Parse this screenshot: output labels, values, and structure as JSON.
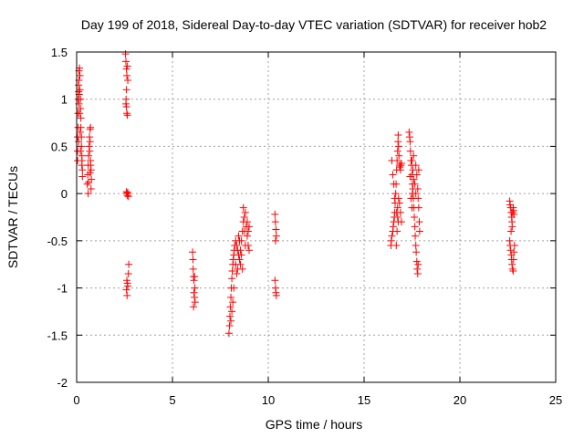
{
  "chart_data": {
    "type": "scatter",
    "title": "Day 199 of 2018, Sidereal Day-to-day VTEC variation (SDTVAR) for receiver hob2",
    "xlabel": "GPS time / hours",
    "ylabel": "SDTVAR / TECUs",
    "xlim": [
      0,
      25
    ],
    "ylim": [
      -2,
      1.5
    ],
    "xticks": [
      0,
      5,
      10,
      15,
      20,
      25
    ],
    "xtick_labels": [
      "0",
      "5",
      "10",
      "15",
      "20",
      "25"
    ],
    "yticks": [
      -2,
      -1.5,
      -1,
      -0.5,
      0,
      0.5,
      1,
      1.5
    ],
    "ytick_labels": [
      "-2",
      "-1.5",
      "-1",
      "-0.5",
      "0",
      "0.5",
      "1",
      "1.5"
    ],
    "grid": true,
    "marker": "plus",
    "color": "#ff0000",
    "series": [
      {
        "name": "SDTVAR",
        "points": [
          [
            0.05,
            0.35
          ],
          [
            0.05,
            0.45
          ],
          [
            0.05,
            0.6
          ],
          [
            0.07,
            0.7
          ],
          [
            0.07,
            0.85
          ],
          [
            0.08,
            1.0
          ],
          [
            0.1,
            1.08
          ],
          [
            0.1,
            1.15
          ],
          [
            0.12,
            1.2
          ],
          [
            0.12,
            1.3
          ],
          [
            0.15,
            1.33
          ],
          [
            0.17,
            1.25
          ],
          [
            0.17,
            1.1
          ],
          [
            0.2,
            1.0
          ],
          [
            0.2,
            0.9
          ],
          [
            0.22,
            0.8
          ],
          [
            0.22,
            0.7
          ],
          [
            0.25,
            0.6
          ],
          [
            0.25,
            0.5
          ],
          [
            0.27,
            0.4
          ],
          [
            0.27,
            0.3
          ],
          [
            0.3,
            0.25
          ],
          [
            0.3,
            0.18
          ],
          [
            0.12,
            0.95
          ],
          [
            0.15,
            0.85
          ],
          [
            0.1,
            0.55
          ],
          [
            0.18,
            0.65
          ],
          [
            0.2,
            0.45
          ],
          [
            0.28,
            0.35
          ],
          [
            0.13,
            1.05
          ],
          [
            0.55,
            0.1
          ],
          [
            0.58,
            0.2
          ],
          [
            0.6,
            0.3
          ],
          [
            0.62,
            0.4
          ],
          [
            0.65,
            0.5
          ],
          [
            0.67,
            0.6
          ],
          [
            0.7,
            0.68
          ],
          [
            0.72,
            0.7
          ],
          [
            0.7,
            0.55
          ],
          [
            0.68,
            0.45
          ],
          [
            0.72,
            0.35
          ],
          [
            0.75,
            0.25
          ],
          [
            0.77,
            0.15
          ],
          [
            0.75,
            0.05
          ],
          [
            0.6,
            0.0
          ],
          [
            0.62,
            0.12
          ],
          [
            0.7,
            0.22
          ],
          [
            0.73,
            0.3
          ],
          [
            2.55,
            1.48
          ],
          [
            2.57,
            1.4
          ],
          [
            2.6,
            1.32
          ],
          [
            2.62,
            1.25
          ],
          [
            2.65,
            1.35
          ],
          [
            2.67,
            1.2
          ],
          [
            2.6,
            1.1
          ],
          [
            2.58,
            1.0
          ],
          [
            2.6,
            0.92
          ],
          [
            2.62,
            0.85
          ],
          [
            2.65,
            0.83
          ],
          [
            2.57,
            0.95
          ],
          [
            2.6,
            0.02
          ],
          [
            2.62,
            0.0
          ],
          [
            2.65,
            -0.02
          ],
          [
            2.67,
            0.01
          ],
          [
            2.7,
            -0.03
          ],
          [
            2.62,
            -0.92
          ],
          [
            2.65,
            -0.95
          ],
          [
            2.67,
            -0.98
          ],
          [
            2.6,
            -1.02
          ],
          [
            2.63,
            -1.08
          ],
          [
            2.7,
            -0.85
          ],
          [
            2.72,
            -0.75
          ],
          [
            6.05,
            -0.62
          ],
          [
            6.07,
            -0.7
          ],
          [
            6.08,
            -0.8
          ],
          [
            6.1,
            -0.88
          ],
          [
            6.12,
            -0.92
          ],
          [
            6.15,
            -0.88
          ],
          [
            6.12,
            -1.05
          ],
          [
            6.15,
            -1.1
          ],
          [
            6.18,
            -1.15
          ],
          [
            6.1,
            -1.2
          ],
          [
            6.17,
            -1.0
          ],
          [
            7.95,
            -1.48
          ],
          [
            7.98,
            -1.4
          ],
          [
            8.0,
            -1.3
          ],
          [
            8.02,
            -1.2
          ],
          [
            8.05,
            -1.1
          ],
          [
            8.07,
            -1.0
          ],
          [
            8.1,
            -0.9
          ],
          [
            8.12,
            -0.82
          ],
          [
            8.15,
            -0.75
          ],
          [
            8.17,
            -0.7
          ],
          [
            8.2,
            -0.65
          ],
          [
            8.22,
            -0.6
          ],
          [
            8.25,
            -0.55
          ],
          [
            8.3,
            -0.5
          ],
          [
            8.35,
            -0.55
          ],
          [
            8.4,
            -0.6
          ],
          [
            8.45,
            -0.65
          ],
          [
            8.5,
            -0.7
          ],
          [
            8.55,
            -0.6
          ],
          [
            8.6,
            -0.5
          ],
          [
            8.65,
            -0.4
          ],
          [
            8.7,
            -0.3
          ],
          [
            8.75,
            -0.25
          ],
          [
            8.8,
            -0.2
          ],
          [
            8.85,
            -0.35
          ],
          [
            8.9,
            -0.45
          ],
          [
            8.95,
            -0.55
          ],
          [
            9.0,
            -0.6
          ],
          [
            8.3,
            -0.75
          ],
          [
            8.35,
            -0.85
          ],
          [
            8.2,
            -1.0
          ],
          [
            8.1,
            -1.25
          ],
          [
            8.15,
            -1.15
          ],
          [
            8.05,
            -1.35
          ],
          [
            8.4,
            -0.8
          ],
          [
            8.5,
            -0.5
          ],
          [
            8.45,
            -0.45
          ],
          [
            8.55,
            -0.75
          ],
          [
            8.6,
            -0.65
          ],
          [
            8.7,
            -0.15
          ],
          [
            8.75,
            -0.4
          ],
          [
            8.8,
            -0.55
          ],
          [
            8.9,
            -0.3
          ],
          [
            8.95,
            -0.4
          ],
          [
            9.0,
            -0.35
          ],
          [
            8.65,
            -0.8
          ],
          [
            10.35,
            -0.22
          ],
          [
            10.37,
            -0.3
          ],
          [
            10.4,
            -0.38
          ],
          [
            10.42,
            -0.45
          ],
          [
            10.38,
            -0.5
          ],
          [
            10.35,
            -0.92
          ],
          [
            10.38,
            -1.0
          ],
          [
            10.4,
            -1.05
          ],
          [
            10.42,
            -1.08
          ],
          [
            16.4,
            -0.55
          ],
          [
            16.42,
            -0.5
          ],
          [
            16.45,
            -0.45
          ],
          [
            16.5,
            -0.4
          ],
          [
            16.52,
            -0.35
          ],
          [
            16.55,
            -0.3
          ],
          [
            16.58,
            -0.25
          ],
          [
            16.6,
            -0.2
          ],
          [
            16.62,
            -0.1
          ],
          [
            16.65,
            0.0
          ],
          [
            16.67,
            0.1
          ],
          [
            16.45,
            0.35
          ],
          [
            16.5,
            0.2
          ],
          [
            16.55,
            0.1
          ],
          [
            16.6,
            -0.05
          ],
          [
            16.7,
            0.25
          ],
          [
            16.72,
            0.35
          ],
          [
            16.75,
            0.45
          ],
          [
            16.77,
            0.55
          ],
          [
            16.78,
            0.62
          ],
          [
            16.8,
            0.5
          ],
          [
            16.82,
            0.4
          ],
          [
            16.85,
            0.3
          ],
          [
            16.87,
            0.28
          ],
          [
            16.9,
            0.25
          ],
          [
            16.92,
            0.3
          ],
          [
            16.95,
            0.32
          ],
          [
            16.7,
            -0.2
          ],
          [
            16.75,
            -0.15
          ],
          [
            16.8,
            -0.05
          ],
          [
            16.85,
            -0.1
          ],
          [
            16.9,
            -0.2
          ],
          [
            16.95,
            -0.3
          ],
          [
            16.72,
            -0.4
          ],
          [
            16.78,
            -0.3
          ],
          [
            16.68,
            -0.55
          ],
          [
            16.75,
            -0.25
          ],
          [
            17.35,
            0.65
          ],
          [
            17.38,
            0.6
          ],
          [
            17.4,
            0.55
          ],
          [
            17.42,
            0.45
          ],
          [
            17.45,
            0.35
          ],
          [
            17.47,
            0.3
          ],
          [
            17.5,
            0.2
          ],
          [
            17.52,
            0.1
          ],
          [
            17.55,
            0.05
          ],
          [
            17.57,
            -0.05
          ],
          [
            17.6,
            -0.15
          ],
          [
            17.62,
            -0.25
          ],
          [
            17.65,
            -0.35
          ],
          [
            17.67,
            -0.45
          ],
          [
            17.7,
            -0.55
          ],
          [
            17.72,
            -0.62
          ],
          [
            17.75,
            -0.72
          ],
          [
            17.77,
            -0.8
          ],
          [
            17.8,
            -0.85
          ],
          [
            17.82,
            -0.75
          ],
          [
            17.5,
            0.35
          ],
          [
            17.55,
            0.25
          ],
          [
            17.6,
            0.15
          ],
          [
            17.7,
            0.3
          ],
          [
            17.75,
            0.2
          ],
          [
            17.8,
            0.05
          ],
          [
            17.82,
            -0.05
          ],
          [
            17.85,
            -0.15
          ],
          [
            17.88,
            -0.3
          ],
          [
            17.9,
            -0.4
          ],
          [
            17.45,
            -0.05
          ],
          [
            17.5,
            -0.15
          ],
          [
            17.52,
            0.0
          ],
          [
            17.58,
            0.4
          ],
          [
            17.65,
            0.1
          ],
          [
            17.7,
            0.0
          ],
          [
            17.4,
            0.18
          ],
          [
            17.85,
            0.25
          ],
          [
            22.6,
            -0.08
          ],
          [
            22.62,
            -0.12
          ],
          [
            22.65,
            -0.15
          ],
          [
            22.68,
            -0.2
          ],
          [
            22.7,
            -0.25
          ],
          [
            22.72,
            -0.3
          ],
          [
            22.75,
            -0.2
          ],
          [
            22.78,
            -0.15
          ],
          [
            22.8,
            -0.18
          ],
          [
            22.82,
            -0.22
          ],
          [
            22.6,
            -0.5
          ],
          [
            22.62,
            -0.55
          ],
          [
            22.65,
            -0.6
          ],
          [
            22.68,
            -0.65
          ],
          [
            22.7,
            -0.7
          ],
          [
            22.72,
            -0.75
          ],
          [
            22.75,
            -0.8
          ],
          [
            22.78,
            -0.82
          ],
          [
            22.8,
            -0.7
          ],
          [
            22.82,
            -0.62
          ],
          [
            22.85,
            -0.55
          ],
          [
            22.67,
            -0.4
          ],
          [
            22.73,
            -0.35
          ]
        ]
      }
    ]
  }
}
